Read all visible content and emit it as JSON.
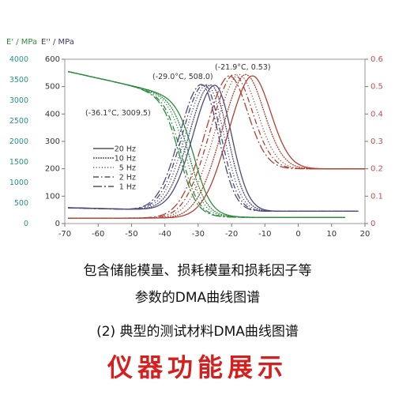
{
  "chart_data": {
    "type": "line",
    "axis_labels": {
      "e_prime": "E' / MPa",
      "e_double_prime": "E'' / MPa"
    },
    "x_ticks": [
      -70,
      -60,
      -50,
      -40,
      -30,
      -20,
      -10,
      0,
      10,
      20
    ],
    "xlim": [
      -70,
      20
    ],
    "y_left_outer_ticks": [
      0,
      500,
      1000,
      1500,
      2000,
      2500,
      3000,
      3500,
      4000
    ],
    "y_left_inner_ticks": [
      0,
      100,
      200,
      300,
      400,
      500,
      600
    ],
    "y_right_ticks": [
      0,
      0.1,
      0.2,
      0.3,
      0.4,
      0.5,
      0.6
    ],
    "colors": {
      "e_prime": "#2e8b3e",
      "e_double_prime": "#4a4a7a",
      "tan_delta": "#b04030",
      "outer_axis": "#3aa0a0",
      "right_axis": "#c05050"
    },
    "legend": [
      {
        "label": "20 Hz",
        "dash": "solid"
      },
      {
        "label": "10 Hz",
        "dash": "dense-dot"
      },
      {
        "label": "5 Hz",
        "dash": "dot"
      },
      {
        "label": "2 Hz",
        "dash": "dash-dot"
      },
      {
        "label": "1 Hz",
        "dash": "long-dash-dot"
      }
    ],
    "series": [
      {
        "name": "20 Hz",
        "e_prime_onset": -36.1,
        "e_double_prime_peak": [
          -25.0,
          505
        ],
        "tan_delta_peak": [
          -15.0,
          0.53
        ]
      },
      {
        "name": "10 Hz",
        "e_prime_onset": -37.5,
        "e_double_prime_peak": [
          -26.2,
          506
        ],
        "tan_delta_peak": [
          -17.0,
          0.535
        ]
      },
      {
        "name": "5 Hz",
        "e_prime_onset": -38.5,
        "e_double_prime_peak": [
          -27.3,
          507
        ],
        "tan_delta_peak": [
          -19.0,
          0.535
        ]
      },
      {
        "name": "2 Hz",
        "e_prime_onset": -39.8,
        "e_double_prime_peak": [
          -28.2,
          507
        ],
        "tan_delta_peak": [
          -20.5,
          0.535
        ]
      },
      {
        "name": "1 Hz",
        "e_prime_onset": -40.5,
        "e_double_prime_peak": [
          -29.0,
          508
        ],
        "tan_delta_peak": [
          -21.9,
          0.53
        ]
      }
    ],
    "annotations": [
      {
        "text": "(-29.0°C, 508.0)",
        "x": -29.0,
        "y": 508.0,
        "axis": "e_double_prime"
      },
      {
        "text": "(-21.9°C, 0.53)",
        "x": -21.9,
        "y": 0.53,
        "axis": "tan_delta"
      },
      {
        "text": "(-36.1°C, 3009.5)",
        "x": -36.1,
        "y": 3009.5,
        "axis": "e_prime"
      }
    ]
  },
  "captions": {
    "line1": "包含储能模量、损耗模量和损耗因子等",
    "line2": "参数的DMA曲线图谱",
    "line3": "(2) 典型的测试材料DMA曲线图谱",
    "banner": "仪器功能展示"
  }
}
